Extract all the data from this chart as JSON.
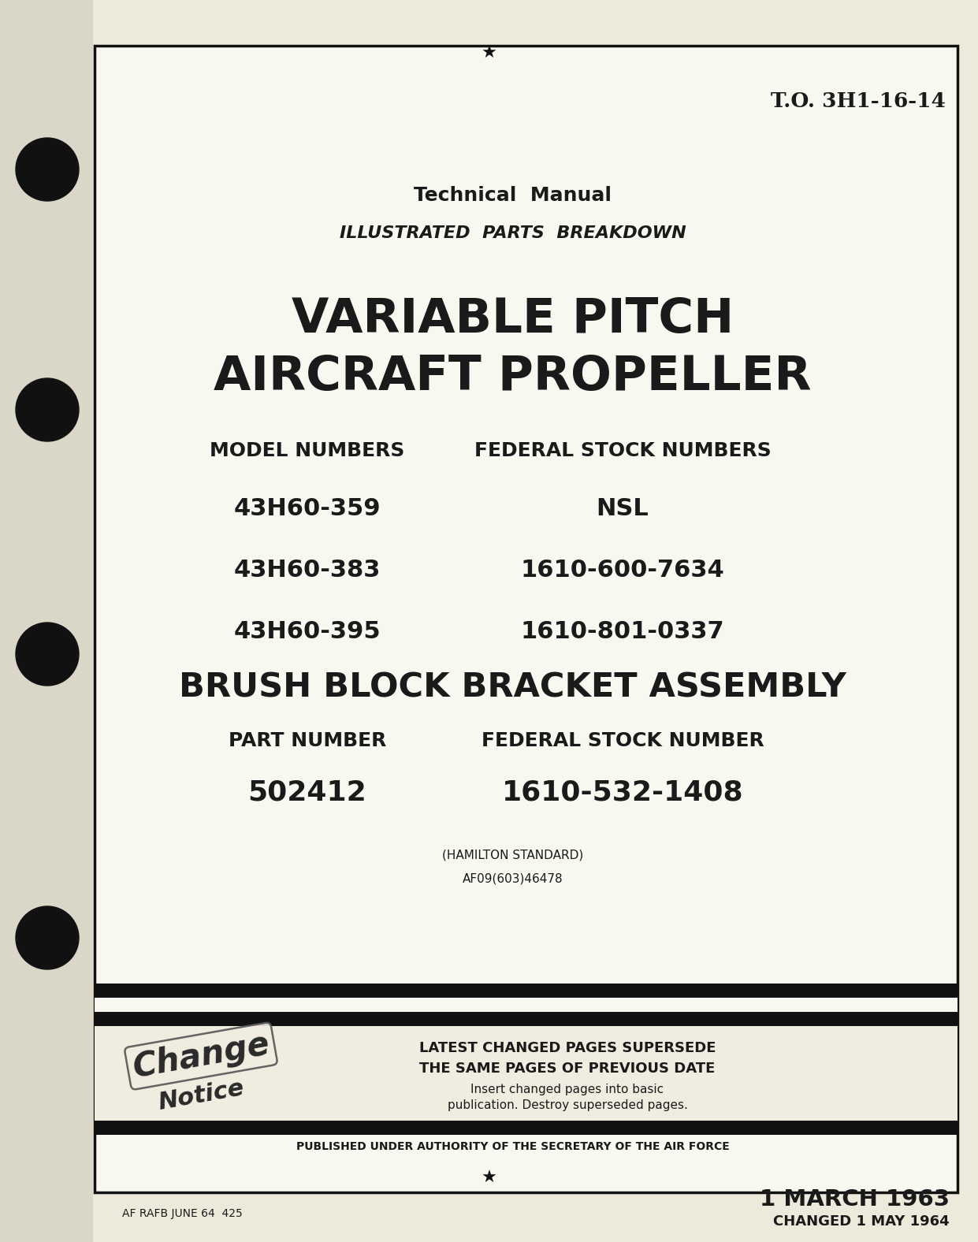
{
  "bg_color": "#eeeadb",
  "inner_bg": "#f8f7f0",
  "to_number": "T.O. 3H1-16-14",
  "title1": "Technical  Manual",
  "title2": "ILLUSTRATED  PARTS  BREAKDOWN",
  "main_title1": "VARIABLE PITCH",
  "main_title2": "AIRCRAFT PROPELLER",
  "model_header": "MODEL NUMBERS",
  "stock_header": "FEDERAL STOCK NUMBERS",
  "models": [
    "43H60-359",
    "43H60-383",
    "43H60-395"
  ],
  "stocks": [
    "NSL",
    "1610-600-7634",
    "1610-801-0337"
  ],
  "assembly_title": "BRUSH BLOCK BRACKET ASSEMBLY",
  "part_header": "PART NUMBER",
  "part_number": "502412",
  "fsn_header": "FEDERAL STOCK NUMBER",
  "fsn_number": "1610-532-1408",
  "hamilton": "(HAMILTON STANDARD)",
  "af_number": "AF09(603)46478",
  "change_line1": "LATEST CHANGED PAGES SUPERSEDE",
  "change_line2": "THE SAME PAGES OF PREVIOUS DATE",
  "change_line3": "Insert changed pages into basic",
  "change_line4": "publication. Destroy superseded pages.",
  "published": "PUBLISHED UNDER AUTHORITY OF THE SECRETARY OF THE AIR FORCE",
  "date": "1 MARCH 1963",
  "changed": "CHANGED 1 MAY 1964",
  "footer_left": "AF RAFB JUNE 64  425",
  "text_color": "#1a1a1a",
  "border_color": "#000000",
  "fig_width": 12.41,
  "fig_height": 15.76,
  "dpi": 100
}
